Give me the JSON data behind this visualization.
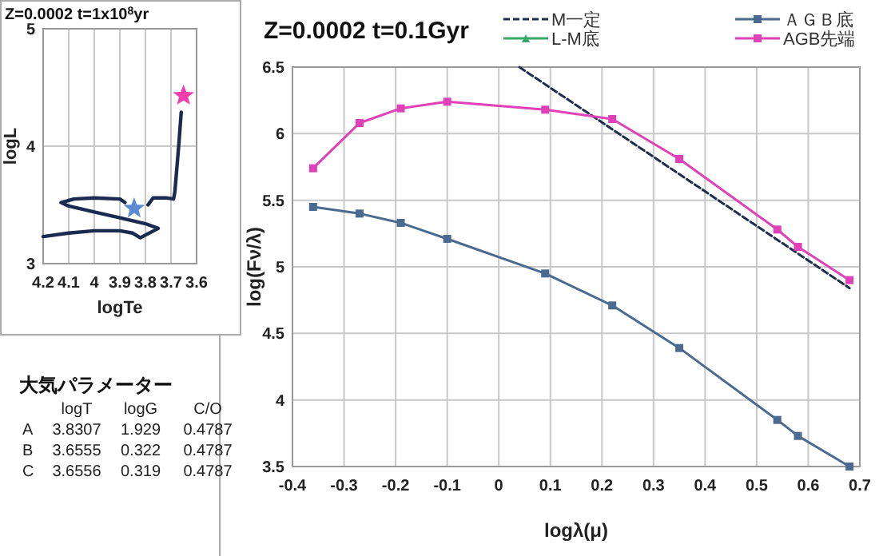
{
  "chart_data": [
    {
      "type": "line",
      "title": "Z=0.0002 t=1x10$^{8}$yr",
      "xlabel": "logTe",
      "ylabel": "logL",
      "xlim": [
        4.2,
        3.6
      ],
      "ylim": [
        3,
        5
      ],
      "xticks": [
        4.2,
        4.1,
        4,
        3.9,
        3.8,
        3.7,
        3.6
      ],
      "yticks": [
        3,
        4,
        5
      ],
      "grid": true,
      "legend": false,
      "series": [
        {
          "color": "#1a2a50",
          "x": [
            4.2,
            4.1,
            4.0,
            3.9,
            3.85,
            3.82,
            3.75,
            3.8,
            3.9,
            4.0,
            4.1,
            4.13,
            4.08,
            4.0,
            3.9,
            3.88,
            null,
            3.79,
            3.77,
            3.72,
            3.69,
            3.685,
            3.67,
            3.66
          ],
          "values": [
            3.23,
            3.26,
            3.28,
            3.28,
            3.26,
            3.22,
            3.3,
            3.34,
            3.39,
            3.44,
            3.49,
            3.52,
            3.55,
            3.56,
            3.55,
            3.52,
            null,
            3.5,
            3.56,
            3.56,
            3.55,
            3.61,
            4.0,
            4.29
          ]
        },
        {
          "type": "scatter",
          "marker": "star",
          "x": [
            3.844
          ],
          "values": [
            3.47
          ],
          "color": "#5b8bd0"
        },
        {
          "type": "scatter",
          "marker": "star",
          "x": [
            3.651
          ],
          "values": [
            4.43
          ],
          "color": "#f040b0"
        }
      ]
    },
    {
      "type": "other",
      "title": "大気パラメーター",
      "categories": [
        "logT",
        "logG",
        "C/O"
      ],
      "y_categories": [
        "A",
        "B",
        "C"
      ],
      "cell_labels": [
        [
          "3.8307",
          "1.929",
          "0.4787"
        ],
        [
          "3.6555",
          "0.322",
          "0.4787"
        ],
        [
          "3.6556",
          "0.319",
          "0.4787"
        ]
      ]
    },
    {
      "type": "line",
      "title": "Z=0.0002 t=0.1Gyr",
      "xlabel": "logλ(μ)",
      "ylabel": "log(Fν/λ)",
      "xlim": [
        -0.4,
        0.7
      ],
      "ylim": [
        3.5,
        6.5
      ],
      "xticks": [
        -0.4,
        -0.3,
        -0.2,
        -0.1,
        0,
        0.1,
        0.2,
        0.3,
        0.4,
        0.5,
        0.6,
        0.7
      ],
      "yticks": [
        3.5,
        4,
        4.5,
        5,
        5.5,
        6,
        6.5
      ],
      "grid": true,
      "legend": "top",
      "series": [
        {
          "name": "M一定",
          "color": "#1f2d4f",
          "line_style": "dashed",
          "marker": "none",
          "x": [
            0.04,
            0.68
          ],
          "values": [
            6.5,
            4.84
          ]
        },
        {
          "name": "ＡＧＢ底",
          "color": "#4a6a90",
          "marker": "square",
          "x": [
            -0.36,
            -0.27,
            -0.19,
            -0.1,
            0.09,
            0.22,
            0.35,
            0.54,
            0.58,
            0.68
          ],
          "values": [
            5.45,
            5.4,
            5.33,
            5.21,
            4.95,
            4.71,
            4.39,
            3.85,
            3.73,
            3.5
          ]
        },
        {
          "name": "L-M底",
          "color": "#33aa66",
          "marker": "triangle"
        },
        {
          "name": "AGB先端",
          "color": "#e040b8",
          "marker": "square",
          "x": [
            -0.36,
            -0.27,
            -0.19,
            -0.1,
            0.09,
            0.22,
            0.35,
            0.54,
            0.58,
            0.68
          ],
          "values": [
            5.74,
            6.08,
            6.19,
            6.24,
            6.18,
            6.11,
            5.81,
            5.28,
            5.15,
            4.9
          ]
        }
      ]
    }
  ]
}
